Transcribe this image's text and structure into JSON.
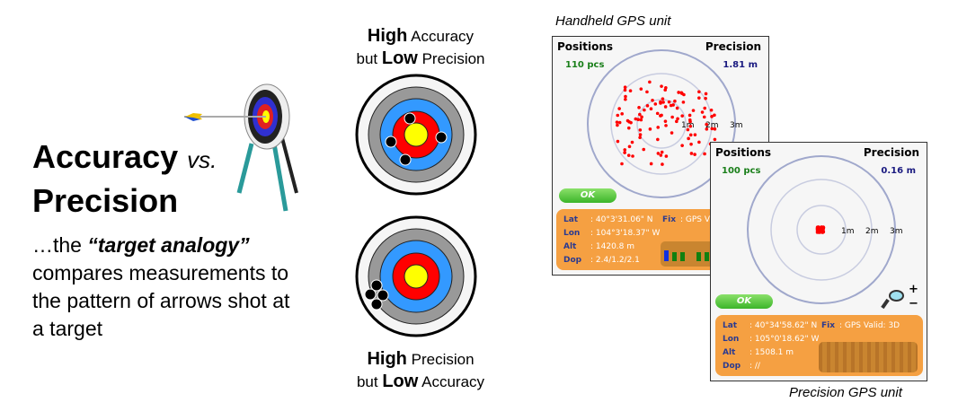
{
  "title": {
    "word1": "Accuracy",
    "vs": "vs.",
    "word2": "Precision"
  },
  "description": {
    "prefix": "…the ",
    "emphasis": "“target analogy”",
    "rest": " compares measurements to the pattern of arrows shot at a target"
  },
  "target_top_caption": {
    "high": "High",
    "rest1": " Accuracy",
    "but": "but ",
    "low": "Low",
    "rest2": " Precision"
  },
  "target_bottom_caption": {
    "high": "High",
    "rest1": " Precision",
    "but": "but ",
    "low": "Low",
    "rest2": " Accuracy"
  },
  "colors": {
    "yellow": "#ffff00",
    "red": "#ff0000",
    "blue": "#3399ff",
    "gray": "#999999",
    "white": "#f5f5f5",
    "orange": "#f5a042",
    "dot": "#ff0000"
  },
  "handheld": {
    "caption": "Handheld GPS unit",
    "positions_label": "Positions",
    "positions_value": "110 pcs",
    "precision_label": "Precision",
    "precision_value": "1.81 m",
    "rings": [
      "1m",
      "2m",
      "3m"
    ],
    "ok": "OK",
    "lat_label": "Lat",
    "lat": ": 40°3'31.06\" N",
    "lon_label": "Lon",
    "lon": ": 104°3'18.37\" W",
    "alt_label": "Alt",
    "alt": ": 1420.8 m",
    "dop_label": "Dop",
    "dop": ": 2.4/1.2/2.1",
    "fix_label": "Fix",
    "fix": ": GPS Vali"
  },
  "precision": {
    "caption": "Precision GPS unit",
    "positions_label": "Positions",
    "positions_value": "100 pcs",
    "precision_label": "Precision",
    "precision_value": "0.16 m",
    "rings": [
      "1m",
      "2m",
      "3m"
    ],
    "ok": "OK",
    "zoom_plus": "+",
    "zoom_minus": "−",
    "lat_label": "Lat",
    "lat": ": 40°34'58.62\" N",
    "lon_label": "Lon",
    "lon": ": 105°0'18.62\" W",
    "alt_label": "Alt",
    "alt": ": 1508.1 m",
    "dop_label": "Dop",
    "dop": ": //",
    "fix_label": "Fix",
    "fix": ": GPS Valid: 3D"
  }
}
